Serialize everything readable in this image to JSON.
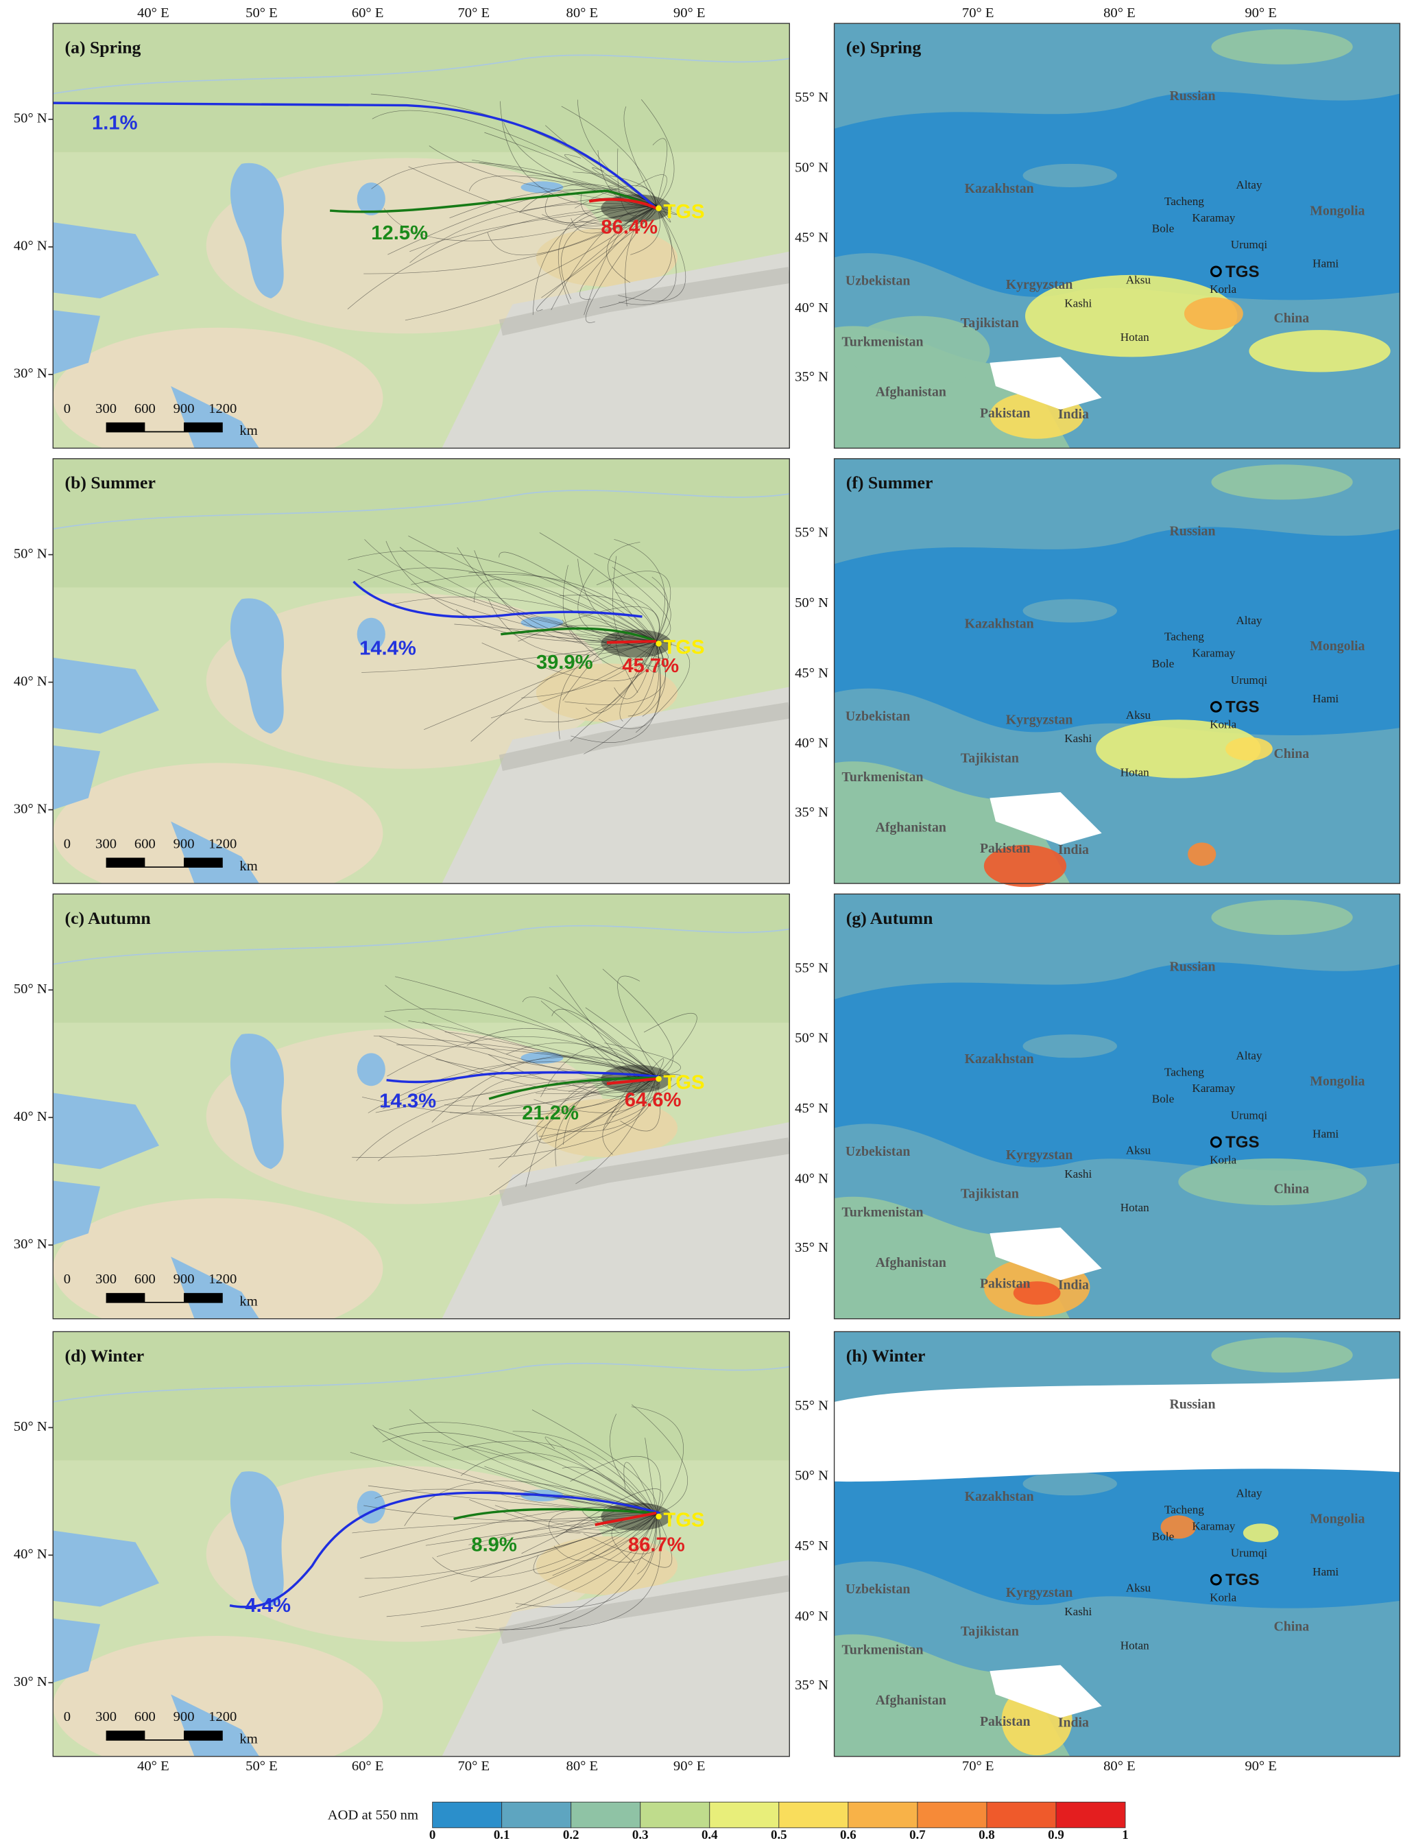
{
  "left_panels": [
    {
      "label": "(a) Spring",
      "percents": [
        "1.1%",
        "12.5%",
        "86.4%"
      ],
      "site": "TGS"
    },
    {
      "label": "(b) Summer",
      "percents": [
        "14.4%",
        "39.9%",
        "45.7%"
      ],
      "site": "TGS"
    },
    {
      "label": "(c) Autumn",
      "percents": [
        "14.3%",
        "21.2%",
        "64.6%"
      ],
      "site": "TGS"
    },
    {
      "label": "(d) Winter",
      "percents": [
        "4.4%",
        "8.9%",
        "86.7%"
      ],
      "site": "TGS"
    }
  ],
  "right_panels": [
    {
      "label": "(e) Spring",
      "site": "TGS"
    },
    {
      "label": "(f) Summer",
      "site": "TGS"
    },
    {
      "label": "(g) Autumn",
      "site": "TGS"
    },
    {
      "label": "(h) Winter",
      "site": "TGS"
    }
  ],
  "lon_labels_left": [
    "40° E",
    "50° E",
    "60° E",
    "70° E",
    "80° E",
    "90° E"
  ],
  "lat_labels_left": [
    "50° N",
    "40° N",
    "30° N"
  ],
  "lon_labels_right": [
    "70° E",
    "80° E",
    "90° E"
  ],
  "lat_labels_right": [
    "55° N",
    "50° N",
    "45° N",
    "40° N",
    "35° N"
  ],
  "countries": [
    "Russian",
    "Kazakhstan",
    "Mongolia",
    "Uzbekistan",
    "Kyrgyzstan",
    "China",
    "Tajikistan",
    "Turkmenistan",
    "Afghanistan",
    "Pakistan",
    "India"
  ],
  "cities": [
    "Altay",
    "Tacheng",
    "Karamay",
    "Bole",
    "Urumqi",
    "Hami",
    "Korla",
    "Aksu",
    "Kashi",
    "Hotan"
  ],
  "scale_bar": {
    "ticks": [
      0,
      300,
      600,
      900,
      1200
    ],
    "unit": "km"
  },
  "colorbar": {
    "title": "AOD at 550 nm",
    "ticks": [
      0,
      0.1,
      0.2,
      0.3,
      0.4,
      0.5,
      0.6,
      0.7,
      0.8,
      0.9,
      1
    ],
    "colors": [
      "#2b8fcb",
      "#5ea5c0",
      "#8fc3a5",
      "#bfdc8c",
      "#e8ee7a",
      "#f9dd5c",
      "#f8b248",
      "#f68a38",
      "#ef5a2b",
      "#e41e1f"
    ]
  }
}
